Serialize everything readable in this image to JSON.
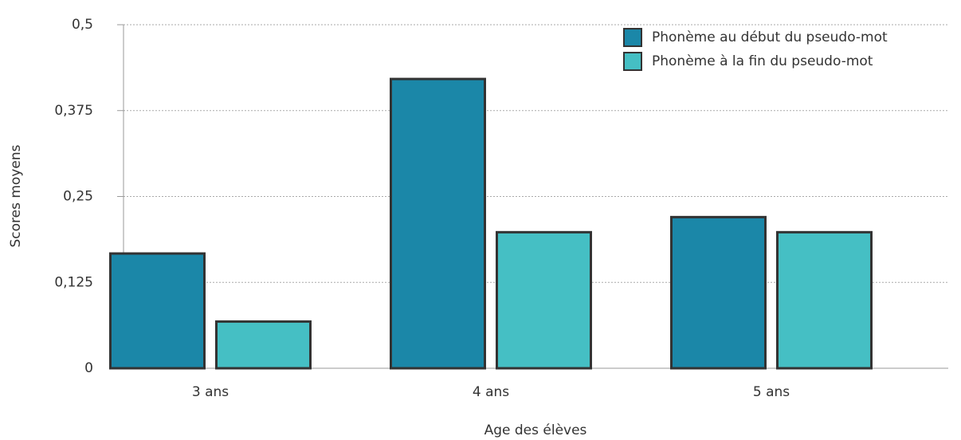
{
  "chart_data": {
    "type": "bar",
    "x_label": "Age des élèves",
    "y_label": "Scores moyens",
    "categories": [
      "3 ans",
      "4 ans",
      "5 ans"
    ],
    "series": [
      {
        "name": "Phonème au début du pseudo-mot",
        "color": "#1b87a8",
        "values": [
          0.167,
          0.421,
          0.22
        ]
      },
      {
        "name": "Phonème à la fin du pseudo-mot",
        "color": "#45bfc4",
        "values": [
          0.068,
          0.198,
          0.198
        ]
      }
    ],
    "ylim": [
      0,
      0.5
    ],
    "yticks": [
      0,
      {
        "value": 0.125,
        "label": "0,125"
      },
      {
        "value": 0.25,
        "label": "0,25"
      },
      {
        "value": 0.375,
        "label": "0,375"
      },
      {
        "value": 0.5,
        "label": "0,5"
      }
    ],
    "grid": true,
    "legend": "top-right"
  }
}
